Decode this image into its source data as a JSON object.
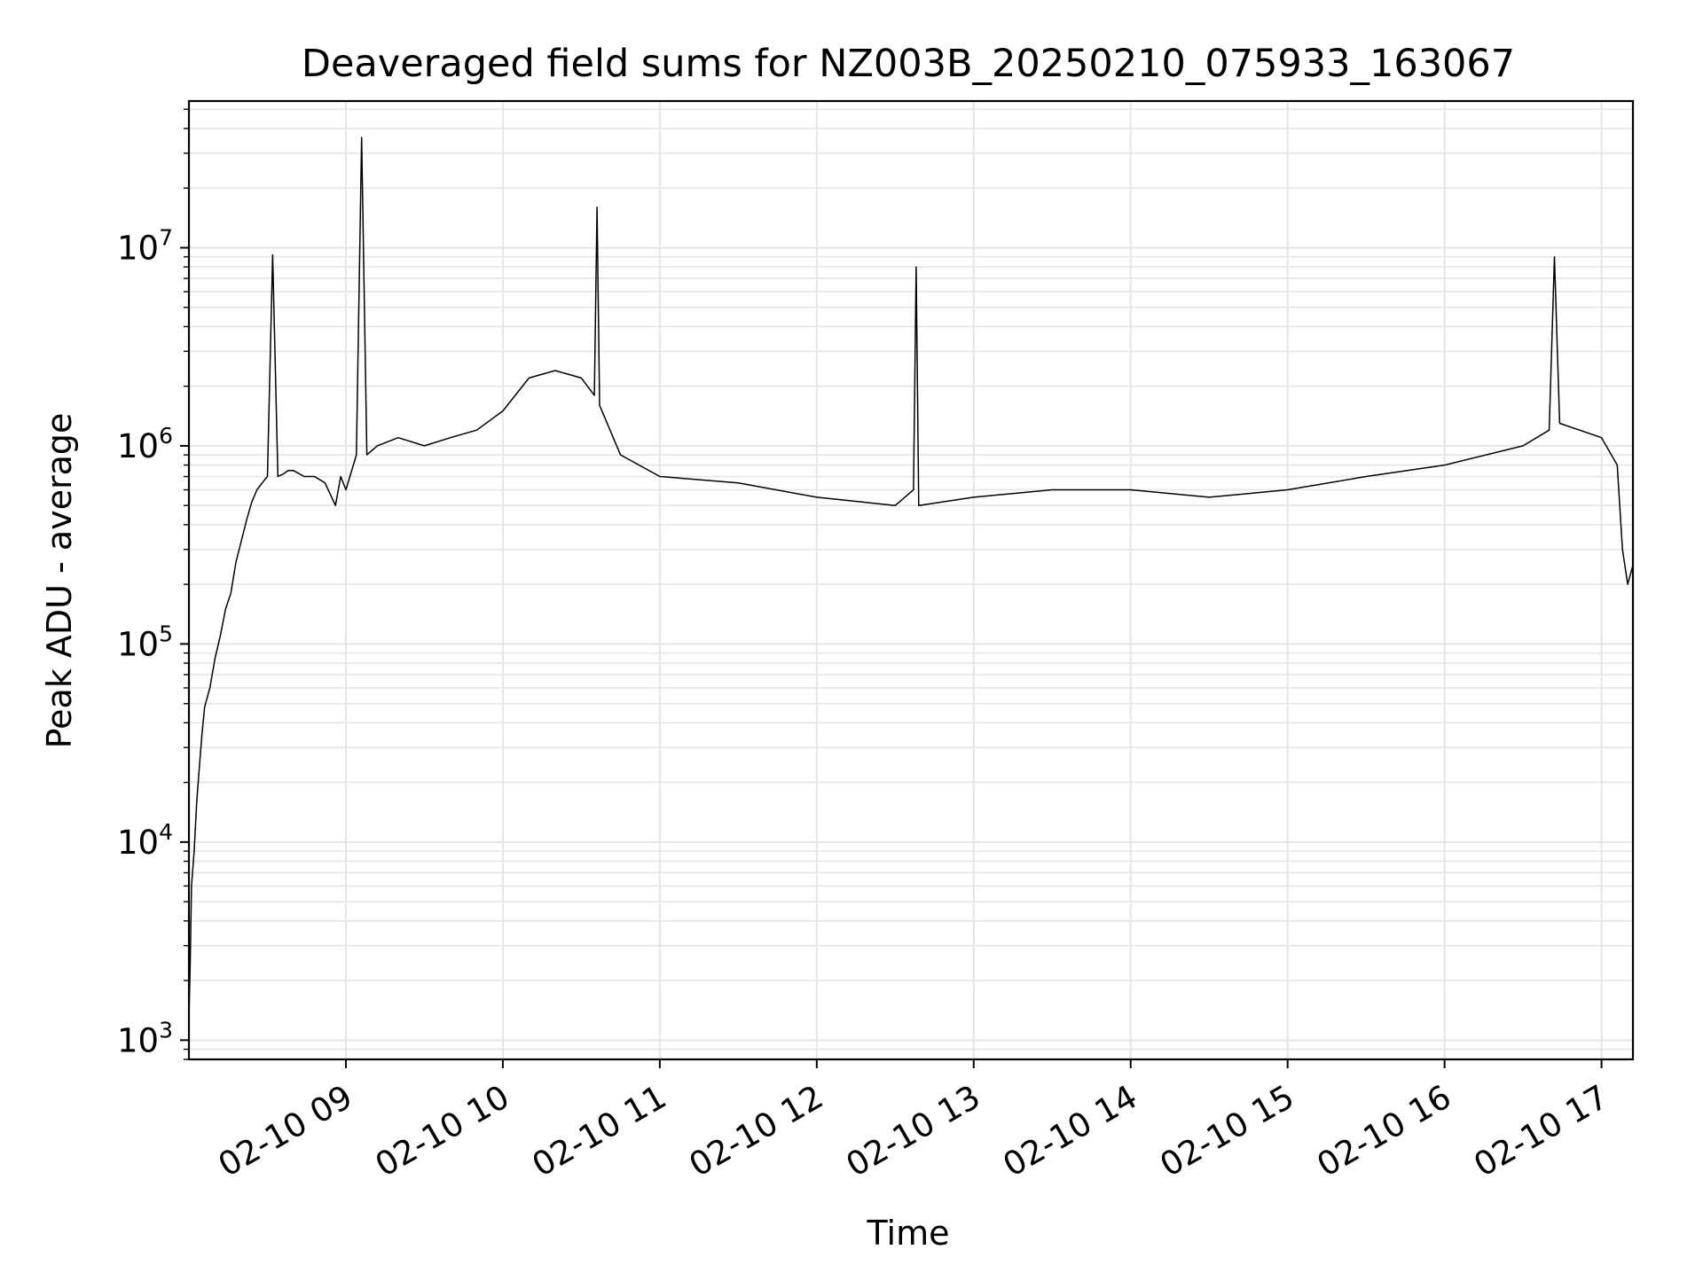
{
  "chart_data": {
    "type": "line",
    "title": "Deaveraged field sums for NZ003B_20250210_075933_163067",
    "xlabel": "Time",
    "ylabel": "Peak ADU - average",
    "yscale": "log",
    "xlim": [
      "2025-02-10T08:00:00",
      "2025-02-10T17:12:00"
    ],
    "ylim": [
      800,
      55000000
    ],
    "x_ticks": [
      {
        "t": "2025-02-10T09:00:00",
        "label": "02-10 09"
      },
      {
        "t": "2025-02-10T10:00:00",
        "label": "02-10 10"
      },
      {
        "t": "2025-02-10T11:00:00",
        "label": "02-10 11"
      },
      {
        "t": "2025-02-10T12:00:00",
        "label": "02-10 12"
      },
      {
        "t": "2025-02-10T13:00:00",
        "label": "02-10 13"
      },
      {
        "t": "2025-02-10T14:00:00",
        "label": "02-10 14"
      },
      {
        "t": "2025-02-10T15:00:00",
        "label": "02-10 15"
      },
      {
        "t": "2025-02-10T16:00:00",
        "label": "02-10 16"
      },
      {
        "t": "2025-02-10T17:00:00",
        "label": "02-10 17"
      }
    ],
    "y_ticks": [
      {
        "value": 1000,
        "base": "10",
        "exp": "3"
      },
      {
        "value": 10000,
        "base": "10",
        "exp": "4"
      },
      {
        "value": 100000,
        "base": "10",
        "exp": "5"
      },
      {
        "value": 1000000,
        "base": "10",
        "exp": "6"
      },
      {
        "value": 10000000,
        "base": "10",
        "exp": "7"
      }
    ],
    "grid": true,
    "line_color": "#000000",
    "grid_color": "#e5e5e5",
    "series": [
      {
        "x": [
          "2025-02-10T08:00:00",
          "2025-02-10T08:00:30",
          "2025-02-10T08:01:00",
          "2025-02-10T08:02:00",
          "2025-02-10T08:03:00",
          "2025-02-10T08:04:00",
          "2025-02-10T08:05:00",
          "2025-02-10T08:06:00",
          "2025-02-10T08:08:00",
          "2025-02-10T08:10:00",
          "2025-02-10T08:12:00",
          "2025-02-10T08:14:00",
          "2025-02-10T08:16:00",
          "2025-02-10T08:18:00",
          "2025-02-10T08:20:00",
          "2025-02-10T08:22:00",
          "2025-02-10T08:24:00",
          "2025-02-10T08:26:00",
          "2025-02-10T08:28:00",
          "2025-02-10T08:30:00",
          "2025-02-10T08:32:00",
          "2025-02-10T08:34:00",
          "2025-02-10T08:36:00",
          "2025-02-10T08:38:00",
          "2025-02-10T08:40:00",
          "2025-02-10T08:44:00",
          "2025-02-10T08:48:00",
          "2025-02-10T08:52:00",
          "2025-02-10T08:56:00",
          "2025-02-10T08:58:00",
          "2025-02-10T09:00:00",
          "2025-02-10T09:04:00",
          "2025-02-10T09:06:00",
          "2025-02-10T09:08:00",
          "2025-02-10T09:12:00",
          "2025-02-10T09:20:00",
          "2025-02-10T09:30:00",
          "2025-02-10T09:40:00",
          "2025-02-10T09:50:00",
          "2025-02-10T10:00:00",
          "2025-02-10T10:10:00",
          "2025-02-10T10:20:00",
          "2025-02-10T10:30:00",
          "2025-02-10T10:35:00",
          "2025-02-10T10:36:00",
          "2025-02-10T10:37:00",
          "2025-02-10T10:45:00",
          "2025-02-10T11:00:00",
          "2025-02-10T11:30:00",
          "2025-02-10T12:00:00",
          "2025-02-10T12:30:00",
          "2025-02-10T12:37:00",
          "2025-02-10T12:38:00",
          "2025-02-10T12:39:00",
          "2025-02-10T13:00:00",
          "2025-02-10T13:30:00",
          "2025-02-10T14:00:00",
          "2025-02-10T14:30:00",
          "2025-02-10T15:00:00",
          "2025-02-10T15:30:00",
          "2025-02-10T16:00:00",
          "2025-02-10T16:30:00",
          "2025-02-10T16:40:00",
          "2025-02-10T16:42:00",
          "2025-02-10T16:44:00",
          "2025-02-10T17:00:00",
          "2025-02-10T17:06:00",
          "2025-02-10T17:08:00",
          "2025-02-10T17:10:00",
          "2025-02-10T17:12:00"
        ],
        "y": [
          1300,
          2500,
          6000,
          9000,
          16000,
          24000,
          35000,
          48000,
          60000,
          85000,
          110000,
          150000,
          180000,
          260000,
          330000,
          420000,
          520000,
          600000,
          650000,
          700000,
          9200000,
          700000,
          720000,
          750000,
          750000,
          700000,
          700000,
          650000,
          500000,
          700000,
          600000,
          900000,
          36000000,
          900000,
          1000000,
          1100000,
          1000000,
          1100000,
          1200000,
          1500000,
          2200000,
          2400000,
          2200000,
          1800000,
          16000000,
          1600000,
          900000,
          700000,
          650000,
          550000,
          500000,
          600000,
          8000000,
          500000,
          550000,
          600000,
          600000,
          550000,
          600000,
          700000,
          800000,
          1000000,
          1200000,
          9000000,
          1300000,
          1100000,
          800000,
          300000,
          200000,
          250000
        ]
      }
    ]
  }
}
